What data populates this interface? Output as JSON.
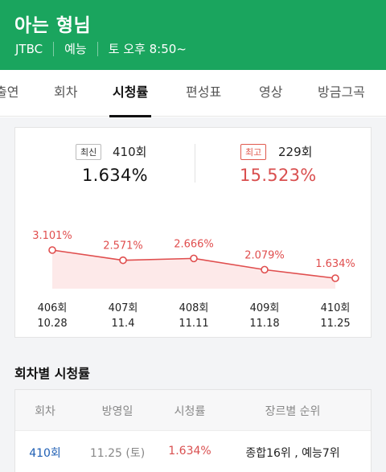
{
  "header": {
    "title": "아는 형님",
    "channel": "JTBC",
    "genre": "예능",
    "schedule": "토 오후 8:50~",
    "color": "#1aa55e"
  },
  "tabs": [
    {
      "label": "출연",
      "active": false
    },
    {
      "label": "회차",
      "active": false
    },
    {
      "label": "시청률",
      "active": true
    },
    {
      "label": "편성표",
      "active": false
    },
    {
      "label": "영상",
      "active": false
    },
    {
      "label": "방금그곡",
      "active": false
    }
  ],
  "summary": {
    "latest": {
      "badge": "최신",
      "episode": "410회",
      "rating": "1.634%"
    },
    "highest": {
      "badge": "최고",
      "episode": "229회",
      "rating": "15.523%"
    }
  },
  "chart_data": {
    "type": "area",
    "points": [
      {
        "episode": "406회",
        "date": "10.28",
        "value": 3.101,
        "label": "3.101%"
      },
      {
        "episode": "407회",
        "date": "11.4",
        "value": 2.571,
        "label": "2.571%"
      },
      {
        "episode": "408회",
        "date": "11.11",
        "value": 2.666,
        "label": "2.666%"
      },
      {
        "episode": "409회",
        "date": "11.18",
        "value": 2.079,
        "label": "2.079%"
      },
      {
        "episode": "410회",
        "date": "11.25",
        "value": 1.634,
        "label": "1.634%"
      }
    ],
    "color": "#e04e4e",
    "fill": "#fde9e9"
  },
  "section": {
    "title": "회차별 시청률"
  },
  "table": {
    "headers": [
      "회차",
      "방영일",
      "시청률",
      "장르별 순위"
    ],
    "rows": [
      [
        "410회",
        "11.25 (토)",
        "1.634%",
        "종합16위 , 예능7위"
      ]
    ]
  }
}
